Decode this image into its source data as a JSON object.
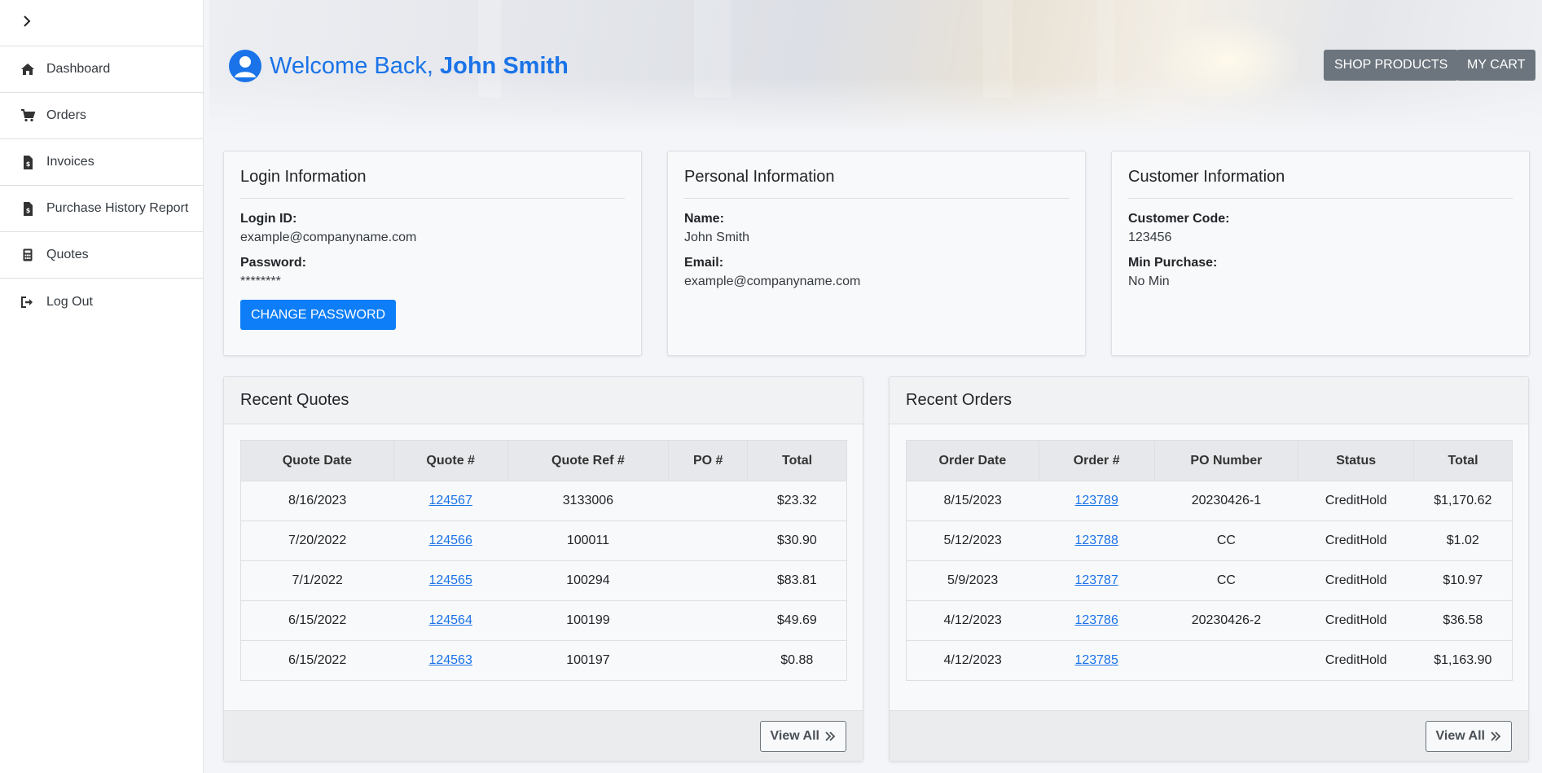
{
  "sidebar": {
    "items": [
      {
        "label": "Dashboard",
        "icon": "home-icon"
      },
      {
        "label": "Orders",
        "icon": "cart-icon"
      },
      {
        "label": "Invoices",
        "icon": "invoice-icon"
      },
      {
        "label": "Purchase History Report",
        "icon": "report-icon"
      },
      {
        "label": "Quotes",
        "icon": "calculator-icon"
      },
      {
        "label": "Log Out",
        "icon": "logout-icon"
      }
    ]
  },
  "header": {
    "greeting": "Welcome Back,",
    "user_name": "John Smith",
    "shop_button": "SHOP PRODUCTS",
    "cart_button": "MY CART"
  },
  "login_info": {
    "title": "Login Information",
    "login_id_label": "Login ID:",
    "login_id": "example@companyname.com",
    "password_label": "Password:",
    "password": "********",
    "change_password": "CHANGE PASSWORD"
  },
  "personal_info": {
    "title": "Personal Information",
    "name_label": "Name:",
    "name": "John Smith",
    "email_label": "Email:",
    "email": "example@companyname.com"
  },
  "customer_info": {
    "title": "Customer Information",
    "code_label": "Customer Code:",
    "code": "123456",
    "min_label": "Min Purchase:",
    "min": "No Min"
  },
  "quotes": {
    "title": "Recent Quotes",
    "columns": [
      "Quote Date",
      "Quote #",
      "Quote Ref #",
      "PO #",
      "Total"
    ],
    "rows": [
      [
        "8/16/2023",
        "124567",
        "3133006",
        "",
        "$23.32"
      ],
      [
        "7/20/2022",
        "124566",
        "100011",
        "",
        "$30.90"
      ],
      [
        "7/1/2022",
        "124565",
        "100294",
        "",
        "$83.81"
      ],
      [
        "6/15/2022",
        "124564",
        "100199",
        "",
        "$49.69"
      ],
      [
        "6/15/2022",
        "124563",
        "100197",
        "",
        "$0.88"
      ]
    ],
    "view_all": "View All"
  },
  "orders": {
    "title": "Recent Orders",
    "columns": [
      "Order Date",
      "Order #",
      "PO Number",
      "Status",
      "Total"
    ],
    "rows": [
      [
        "8/15/2023",
        "123789",
        "20230426-1",
        "CreditHold",
        "$1,170.62"
      ],
      [
        "5/12/2023",
        "123788",
        "CC",
        "CreditHold",
        "$1.02"
      ],
      [
        "5/9/2023",
        "123787",
        "CC",
        "CreditHold",
        "$10.97"
      ],
      [
        "4/12/2023",
        "123786",
        "20230426-2",
        "CreditHold",
        "$36.58"
      ],
      [
        "4/12/2023",
        "123785",
        "",
        "CreditHold",
        "$1,163.90"
      ]
    ],
    "view_all": "View All"
  },
  "colors": {
    "accent": "#1a73e8",
    "primary_button": "#0d7ef7",
    "secondary_button": "#6c757d"
  }
}
